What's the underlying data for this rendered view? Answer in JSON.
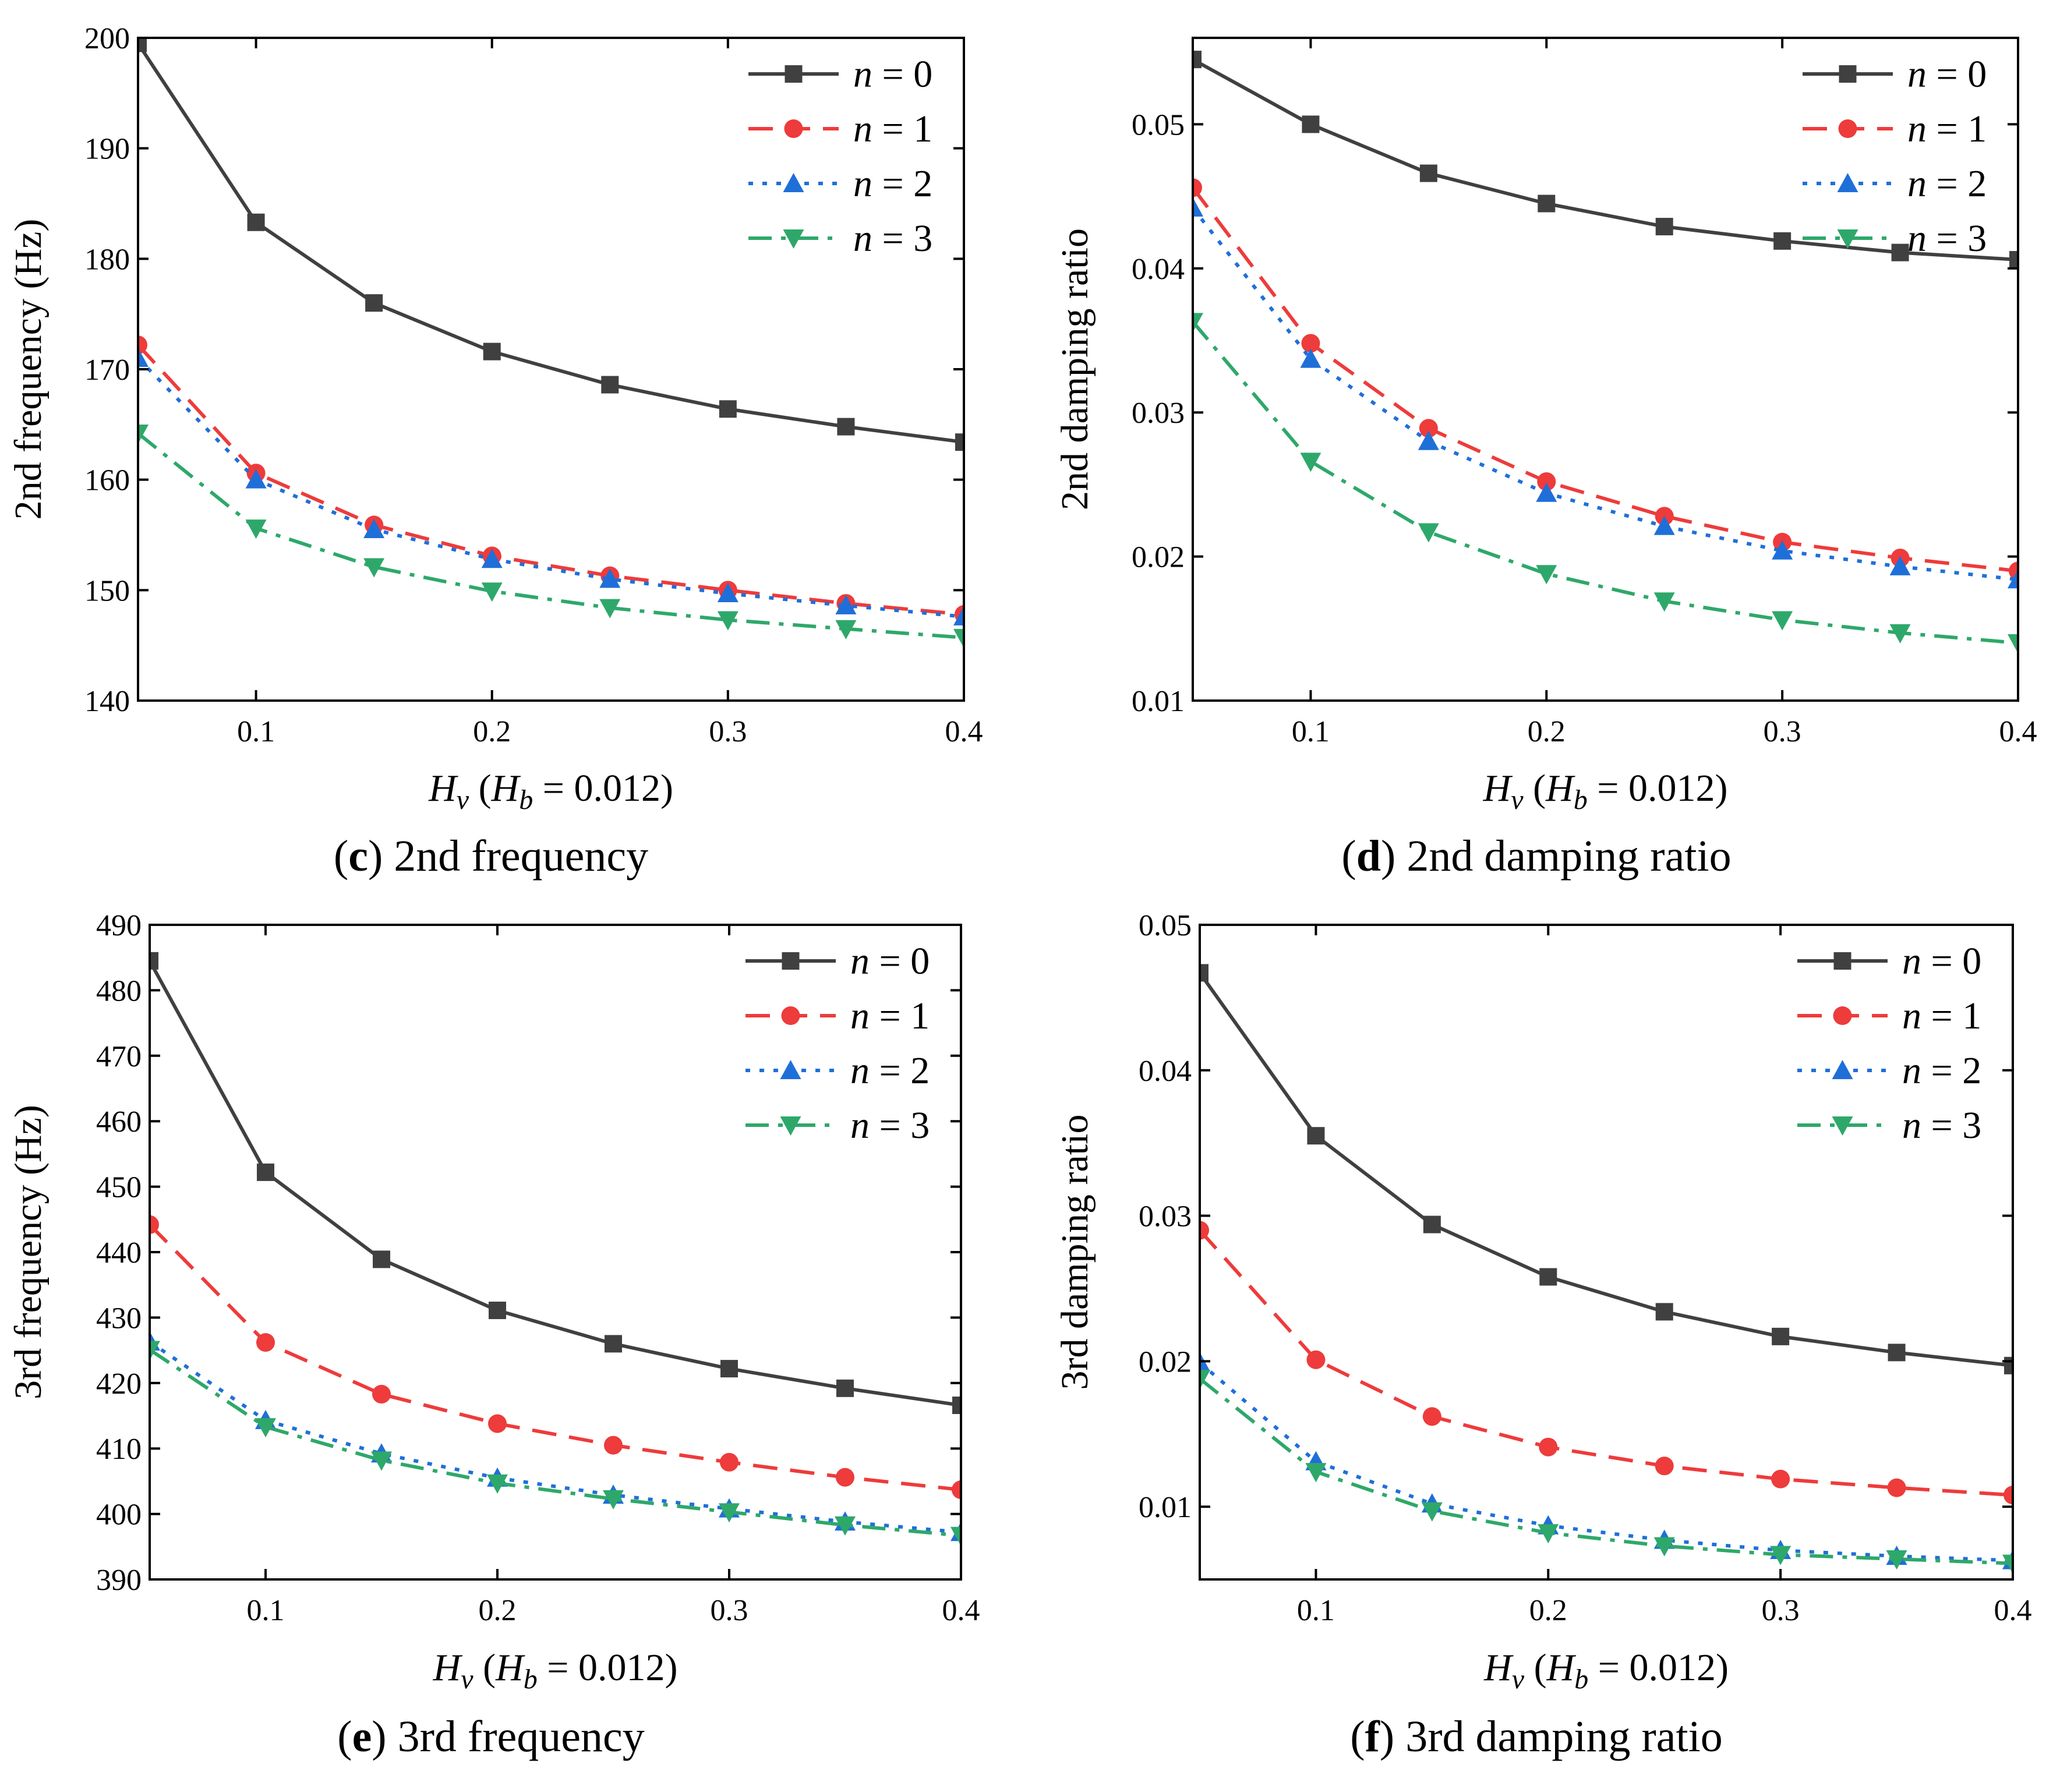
{
  "series_styles": [
    {
      "name": "n = 0",
      "color": "#404040",
      "marker": "square",
      "dash": "none"
    },
    {
      "name": "n = 1",
      "color": "#ee3b3b",
      "marker": "circle",
      "dash": "dashed"
    },
    {
      "name": "n = 2",
      "color": "#1f6fd9",
      "marker": "triangle-up",
      "dash": "dotted"
    },
    {
      "name": "n = 3",
      "color": "#2ea86a",
      "marker": "triangle-down",
      "dash": "dash-dot"
    }
  ],
  "chart_data": [
    {
      "type": "line",
      "panel": "c",
      "caption_letter": "c",
      "caption_text": "2nd frequency",
      "ylabel": "2nd frequency (Hz)",
      "xlabel_var": "H",
      "xlabel_sub": "v",
      "xlabel_open": " (",
      "xlabel_var2": "H",
      "xlabel_sub2": "b",
      "xlabel_rest": " = 0.012)",
      "x": [
        0.05,
        0.1,
        0.15,
        0.2,
        0.25,
        0.3,
        0.35,
        0.4
      ],
      "xlim": [
        0.05,
        0.4
      ],
      "ylim": [
        140,
        200
      ],
      "xticks": [
        0.1,
        0.2,
        0.3,
        0.4
      ],
      "xtick_labels": [
        "0.1",
        "0.2",
        "0.3",
        "0.4"
      ],
      "yticks": [
        140,
        150,
        160,
        170,
        180,
        190,
        200
      ],
      "ytick_labels": [
        "140",
        "150",
        "160",
        "170",
        "180",
        "190",
        "200"
      ],
      "legend": "top-right",
      "series": [
        {
          "name": "n = 0",
          "n_label": "n",
          "n_value": " = 0",
          "values": [
            199.5,
            183.3,
            176.0,
            171.6,
            168.6,
            166.4,
            164.8,
            163.4
          ]
        },
        {
          "name": "n = 1",
          "n_label": "n",
          "n_value": " = 1",
          "values": [
            172.2,
            160.6,
            155.9,
            153.1,
            151.3,
            150.0,
            148.8,
            147.8
          ]
        },
        {
          "name": "n = 2",
          "n_label": "n",
          "n_value": " = 2",
          "values": [
            171.0,
            160.0,
            155.5,
            152.8,
            151.0,
            149.7,
            148.6,
            147.6
          ]
        },
        {
          "name": "n = 3",
          "n_label": "n",
          "n_value": " = 3",
          "values": [
            164.2,
            155.6,
            152.1,
            149.9,
            148.4,
            147.3,
            146.5,
            145.7
          ]
        }
      ]
    },
    {
      "type": "line",
      "panel": "d",
      "caption_letter": "d",
      "caption_text": "2nd damping ratio",
      "ylabel": "2nd damping ratio",
      "xlabel_var": "H",
      "xlabel_sub": "v",
      "xlabel_open": " (",
      "xlabel_var2": "H",
      "xlabel_sub2": "b",
      "xlabel_rest": " = 0.012)",
      "x": [
        0.05,
        0.1,
        0.15,
        0.2,
        0.25,
        0.3,
        0.35,
        0.4
      ],
      "xlim": [
        0.05,
        0.4
      ],
      "ylim": [
        0.01,
        0.056
      ],
      "xticks": [
        0.1,
        0.2,
        0.3,
        0.4
      ],
      "xtick_labels": [
        "0.1",
        "0.2",
        "0.3",
        "0.4"
      ],
      "yticks": [
        0.01,
        0.02,
        0.03,
        0.04,
        0.05
      ],
      "ytick_labels": [
        "0.01",
        "0.02",
        "0.03",
        "0.04",
        "0.05"
      ],
      "legend": "top-right",
      "series": [
        {
          "name": "n = 0",
          "n_label": "n",
          "n_value": " = 0",
          "values": [
            0.0545,
            0.05,
            0.0466,
            0.0445,
            0.0429,
            0.0419,
            0.0411,
            0.0406
          ]
        },
        {
          "name": "n = 1",
          "n_label": "n",
          "n_value": " = 1",
          "values": [
            0.0456,
            0.0348,
            0.0289,
            0.0252,
            0.0228,
            0.021,
            0.0199,
            0.019
          ]
        },
        {
          "name": "n = 2",
          "n_label": "n",
          "n_value": " = 2",
          "values": [
            0.0442,
            0.0337,
            0.028,
            0.0244,
            0.0221,
            0.0204,
            0.0193,
            0.0184
          ]
        },
        {
          "name": "n = 3",
          "n_label": "n",
          "n_value": " = 3",
          "values": [
            0.0363,
            0.0266,
            0.0217,
            0.0188,
            0.0169,
            0.0156,
            0.0147,
            0.014
          ]
        }
      ]
    },
    {
      "type": "line",
      "panel": "e",
      "caption_letter": "e",
      "caption_text": "3rd frequency",
      "ylabel": "3rd frequency (Hz)",
      "xlabel_var": "H",
      "xlabel_sub": "v",
      "xlabel_open": " (",
      "xlabel_var2": "H",
      "xlabel_sub2": "b",
      "xlabel_rest": " = 0.012)",
      "x": [
        0.05,
        0.1,
        0.15,
        0.2,
        0.25,
        0.3,
        0.35,
        0.4
      ],
      "xlim": [
        0.05,
        0.4
      ],
      "ylim": [
        390,
        490
      ],
      "xticks": [
        0.1,
        0.2,
        0.3,
        0.4
      ],
      "xtick_labels": [
        "0.1",
        "0.2",
        "0.3",
        "0.4"
      ],
      "yticks": [
        390,
        400,
        410,
        420,
        430,
        440,
        450,
        460,
        470,
        480,
        490
      ],
      "ytick_labels": [
        "390",
        "400",
        "410",
        "420",
        "430",
        "440",
        "450",
        "460",
        "470",
        "480",
        "490"
      ],
      "legend": "top-right",
      "series": [
        {
          "name": "n = 0",
          "n_label": "n",
          "n_value": " = 0",
          "values": [
            484.5,
            452.2,
            438.9,
            431.1,
            426.0,
            422.2,
            419.2,
            416.6
          ]
        },
        {
          "name": "n = 1",
          "n_label": "n",
          "n_value": " = 1",
          "values": [
            444.2,
            426.2,
            418.3,
            413.8,
            410.5,
            407.9,
            405.6,
            403.7
          ]
        },
        {
          "name": "n = 2",
          "n_label": "n",
          "n_value": " = 2",
          "values": [
            426.3,
            414.3,
            409.2,
            405.5,
            402.9,
            400.8,
            398.8,
            397.2
          ]
        },
        {
          "name": "n = 3",
          "n_label": "n",
          "n_value": " = 3",
          "values": [
            425.1,
            413.3,
            408.2,
            404.7,
            402.3,
            400.3,
            398.3,
            396.7
          ]
        }
      ]
    },
    {
      "type": "line",
      "panel": "f",
      "caption_letter": "f",
      "caption_text": "3rd damping ratio",
      "ylabel": "3rd damping ratio",
      "xlabel_var": "H",
      "xlabel_sub": "v",
      "xlabel_open": " (",
      "xlabel_var2": "H",
      "xlabel_sub2": "b",
      "xlabel_rest": " = 0.012)",
      "x": [
        0.05,
        0.1,
        0.15,
        0.2,
        0.25,
        0.3,
        0.35,
        0.4
      ],
      "xlim": [
        0.05,
        0.4
      ],
      "ylim": [
        0.005,
        0.05
      ],
      "xticks": [
        0.1,
        0.2,
        0.3,
        0.4
      ],
      "xtick_labels": [
        "0.1",
        "0.2",
        "0.3",
        "0.4"
      ],
      "yticks": [
        0.01,
        0.02,
        0.03,
        0.04,
        0.05
      ],
      "ytick_labels": [
        "0.01",
        "0.02",
        "0.03",
        "0.04",
        "0.05"
      ],
      "legend": "top-right",
      "series": [
        {
          "name": "n = 0",
          "n_label": "n",
          "n_value": " = 0",
          "values": [
            0.0467,
            0.0355,
            0.0294,
            0.0258,
            0.0234,
            0.0217,
            0.0206,
            0.0197
          ]
        },
        {
          "name": "n = 1",
          "n_label": "n",
          "n_value": " = 1",
          "values": [
            0.029,
            0.0201,
            0.0162,
            0.0141,
            0.0128,
            0.0119,
            0.0113,
            0.0108
          ]
        },
        {
          "name": "n = 2",
          "n_label": "n",
          "n_value": " = 2",
          "values": [
            0.0199,
            0.0131,
            0.0102,
            0.0087,
            0.0077,
            0.007,
            0.0066,
            0.0063
          ]
        },
        {
          "name": "n = 3",
          "n_label": "n",
          "n_value": " = 3",
          "values": [
            0.0188,
            0.0124,
            0.0097,
            0.0082,
            0.0073,
            0.0067,
            0.0064,
            0.0061
          ]
        }
      ]
    }
  ]
}
